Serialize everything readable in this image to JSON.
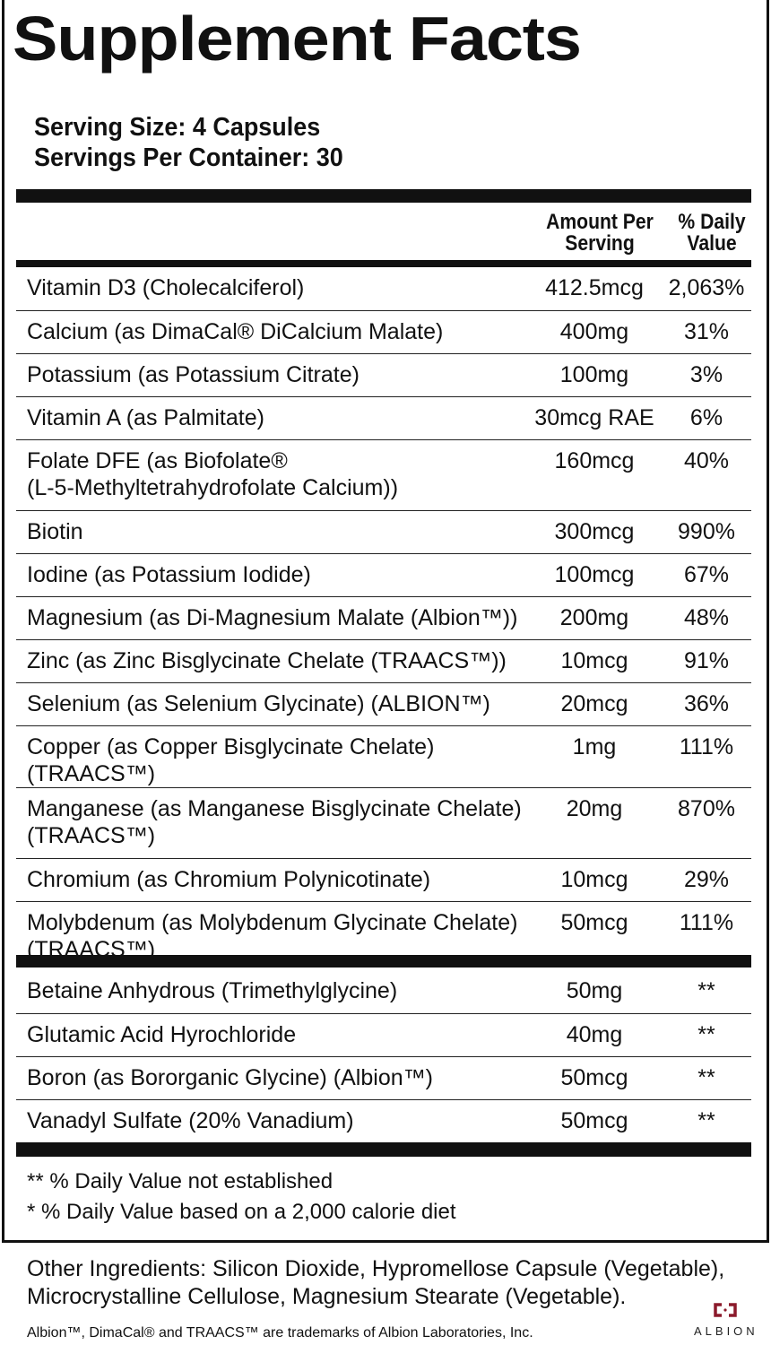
{
  "title": "Supplement Facts",
  "serving_size": "Serving Size: 4 Capsules",
  "servings_per_container": "Servings Per Container: 30",
  "headers": {
    "amount_line1": "Amount Per",
    "amount_line2": "Serving",
    "dv_line1": "% Daily",
    "dv_line2": "Value"
  },
  "nutrients": [
    {
      "name": "Vitamin D3 (Cholecalciferol)",
      "amount": "412.5mcg",
      "dv": "2,063%"
    },
    {
      "name": "Calcium (as DimaCal® DiCalcium Malate)",
      "amount": "400mg",
      "dv": "31%"
    },
    {
      "name": "Potassium (as Potassium Citrate)",
      "amount": "100mg",
      "dv": "3%"
    },
    {
      "name": "Vitamin A (as Palmitate)",
      "amount": "30mcg RAE",
      "dv": "6%"
    },
    {
      "name": "Folate DFE (as Biofolate®",
      "name2": "(L-5-Methyltetrahydrofolate Calcium))",
      "amount": "160mcg",
      "dv": "40%"
    },
    {
      "name": "Biotin",
      "amount": "300mcg",
      "dv": "990%"
    },
    {
      "name": "Iodine (as Potassium Iodide)",
      "amount": "100mcg",
      "dv": "67%"
    },
    {
      "name": "Magnesium (as Di-Magnesium Malate (Albion™))",
      "amount": "200mg",
      "dv": "48%"
    },
    {
      "name": "Zinc (as Zinc Bisglycinate Chelate (TRAACS™))",
      "amount": "10mcg",
      "dv": "91%"
    },
    {
      "name": "Selenium (as Selenium Glycinate) (ALBION™)",
      "amount": "20mcg",
      "dv": "36%"
    },
    {
      "name": "Copper (as Copper Bisglycinate Chelate) (TRAACS™)",
      "amount": "1mg",
      "dv": "111%"
    },
    {
      "name": "Manganese (as Manganese Bisglycinate Chelate)",
      "name2": "(TRAACS™)",
      "amount": "20mg",
      "dv": "870%"
    },
    {
      "name": "Chromium (as Chromium Polynicotinate)",
      "amount": "10mcg",
      "dv": "29%"
    },
    {
      "name": "Molybdenum (as Molybdenum Glycinate Chelate)",
      "name2": "(TRAACS™)",
      "amount": "50mcg",
      "dv": "111%"
    }
  ],
  "others": [
    {
      "name": "Betaine Anhydrous (Trimethylglycine)",
      "amount": "50mg",
      "dv": "**"
    },
    {
      "name": "Glutamic Acid Hyrochloride",
      "amount": "40mg",
      "dv": "**"
    },
    {
      "name": "Boron (as Bororganic Glycine) (Albion™)",
      "amount": "50mcg",
      "dv": "**"
    },
    {
      "name": "Vanadyl Sulfate (20% Vanadium)",
      "amount": "50mcg",
      "dv": "**"
    }
  ],
  "footnotes": [
    "** % Daily Value not established",
    "* % Daily Value based on a 2,000 calorie diet"
  ],
  "other_ingredients": [
    "Other Ingredients: Silicon Dioxide, Hypromellose Capsule (Vegetable),",
    "Microcrystalline Cellulose, Magnesium Stearate (Vegetable)."
  ],
  "trademark_note": "Albion™, DimaCal® and TRAACS™ are trademarks of Albion Laboratories, Inc.",
  "logo": {
    "text": "ALBION",
    "color": "#8b1a2b"
  }
}
